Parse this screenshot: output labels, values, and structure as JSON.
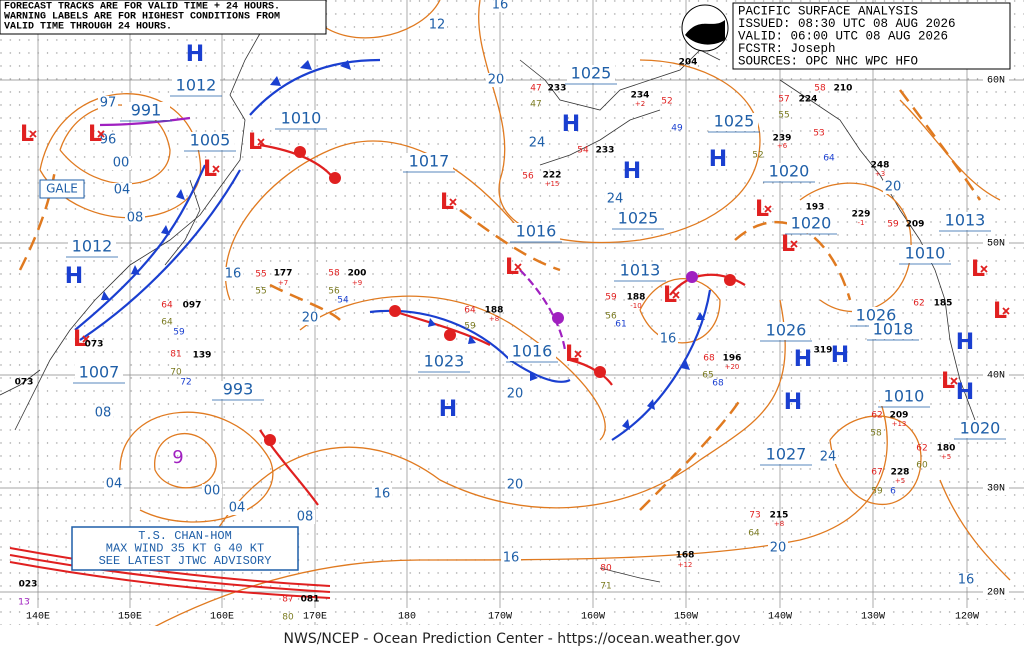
{
  "header": {
    "lines": [
      "FORECAST TRACKS ARE FOR VALID TIME + 24 HOURS.",
      "WARNING LABELS ARE FOR HIGHEST CONDITIONS FROM",
      "VALID TIME THROUGH 24 HOURS."
    ]
  },
  "info": {
    "lines": [
      "PACIFIC SURFACE ANALYSIS",
      "ISSUED: 08:30 UTC 08 AUG 2026",
      "VALID: 06:00 UTC 08 AUG 2026",
      "FCSTR: Joseph",
      "SOURCES: OPC NHC WPC HFO"
    ]
  },
  "pressure_labels": [
    "1012",
    "991",
    "1005",
    "1010",
    "1017",
    "1025",
    "1025",
    "1016",
    "1025",
    "1013",
    "1020",
    "1020",
    "1013",
    "1012",
    "1007",
    "993",
    "1023",
    "1016",
    "1026",
    "1026",
    "1018",
    "1010",
    "1010",
    "1027",
    "1020"
  ],
  "high_symbols": [
    "H",
    "H",
    "H",
    "H",
    "H",
    "H",
    "H",
    "H",
    "H",
    "H",
    "H"
  ],
  "low_symbols": [
    "L",
    "L",
    "L",
    "L",
    "L",
    "L",
    "L",
    "L",
    "L",
    "L",
    "L",
    "L",
    "L",
    "L"
  ],
  "isobar_labels": [
    "12",
    "16",
    "20",
    "24",
    "24",
    "20",
    "16",
    "20",
    "16",
    "20",
    "20",
    "16",
    "16",
    "20",
    "24",
    "16",
    "97",
    "96",
    "00",
    "04",
    "08",
    "08",
    "04",
    "00",
    "04",
    "08"
  ],
  "station_labels": [
    "47",
    "47",
    "233",
    "234",
    "+2",
    "52",
    "49",
    "56",
    "222",
    "+15",
    "54",
    "233",
    "204",
    "58",
    "57",
    "210",
    "224",
    "55",
    "239",
    "+6",
    "52",
    "53",
    "64",
    "248",
    "+3",
    "193",
    "229",
    "-1",
    "59",
    "209",
    "55",
    "55",
    "177",
    "+7",
    "58",
    "200",
    "+9",
    "56",
    "54",
    "64",
    "097",
    "64",
    "59",
    "81",
    "139",
    "70",
    "72",
    "64",
    "188",
    "+8",
    "59",
    "59",
    "188",
    "-10",
    "56",
    "61",
    "68",
    "196",
    "+20",
    "65",
    "68",
    "62",
    "185",
    "319",
    "62",
    "209",
    "+13",
    "58",
    "62",
    "180",
    "+5",
    "60",
    "67",
    "228",
    "+5",
    "59",
    "6",
    "73",
    "215",
    "+8",
    "64",
    "168",
    "+12",
    "80",
    "71",
    "023",
    "13",
    "87",
    "081",
    "80",
    "073",
    "073"
  ],
  "lat_labels": [
    "60N",
    "50N",
    "40N",
    "30N",
    "20N"
  ],
  "lon_labels": [
    "140E",
    "150E",
    "160E",
    "170E",
    "180",
    "170W",
    "160W",
    "150W",
    "140W",
    "130W",
    "120W"
  ],
  "gale_label": "GALE",
  "cyclone_symbol": "9",
  "storm_box": {
    "lines": [
      "T.S. CHAN-HOM",
      "MAX WIND 35 KT G 40 KT",
      "SEE LATEST JTWC ADVISORY"
    ]
  },
  "footer": "NWS/NCEP - Ocean Prediction Center - https://ocean.weather.gov"
}
